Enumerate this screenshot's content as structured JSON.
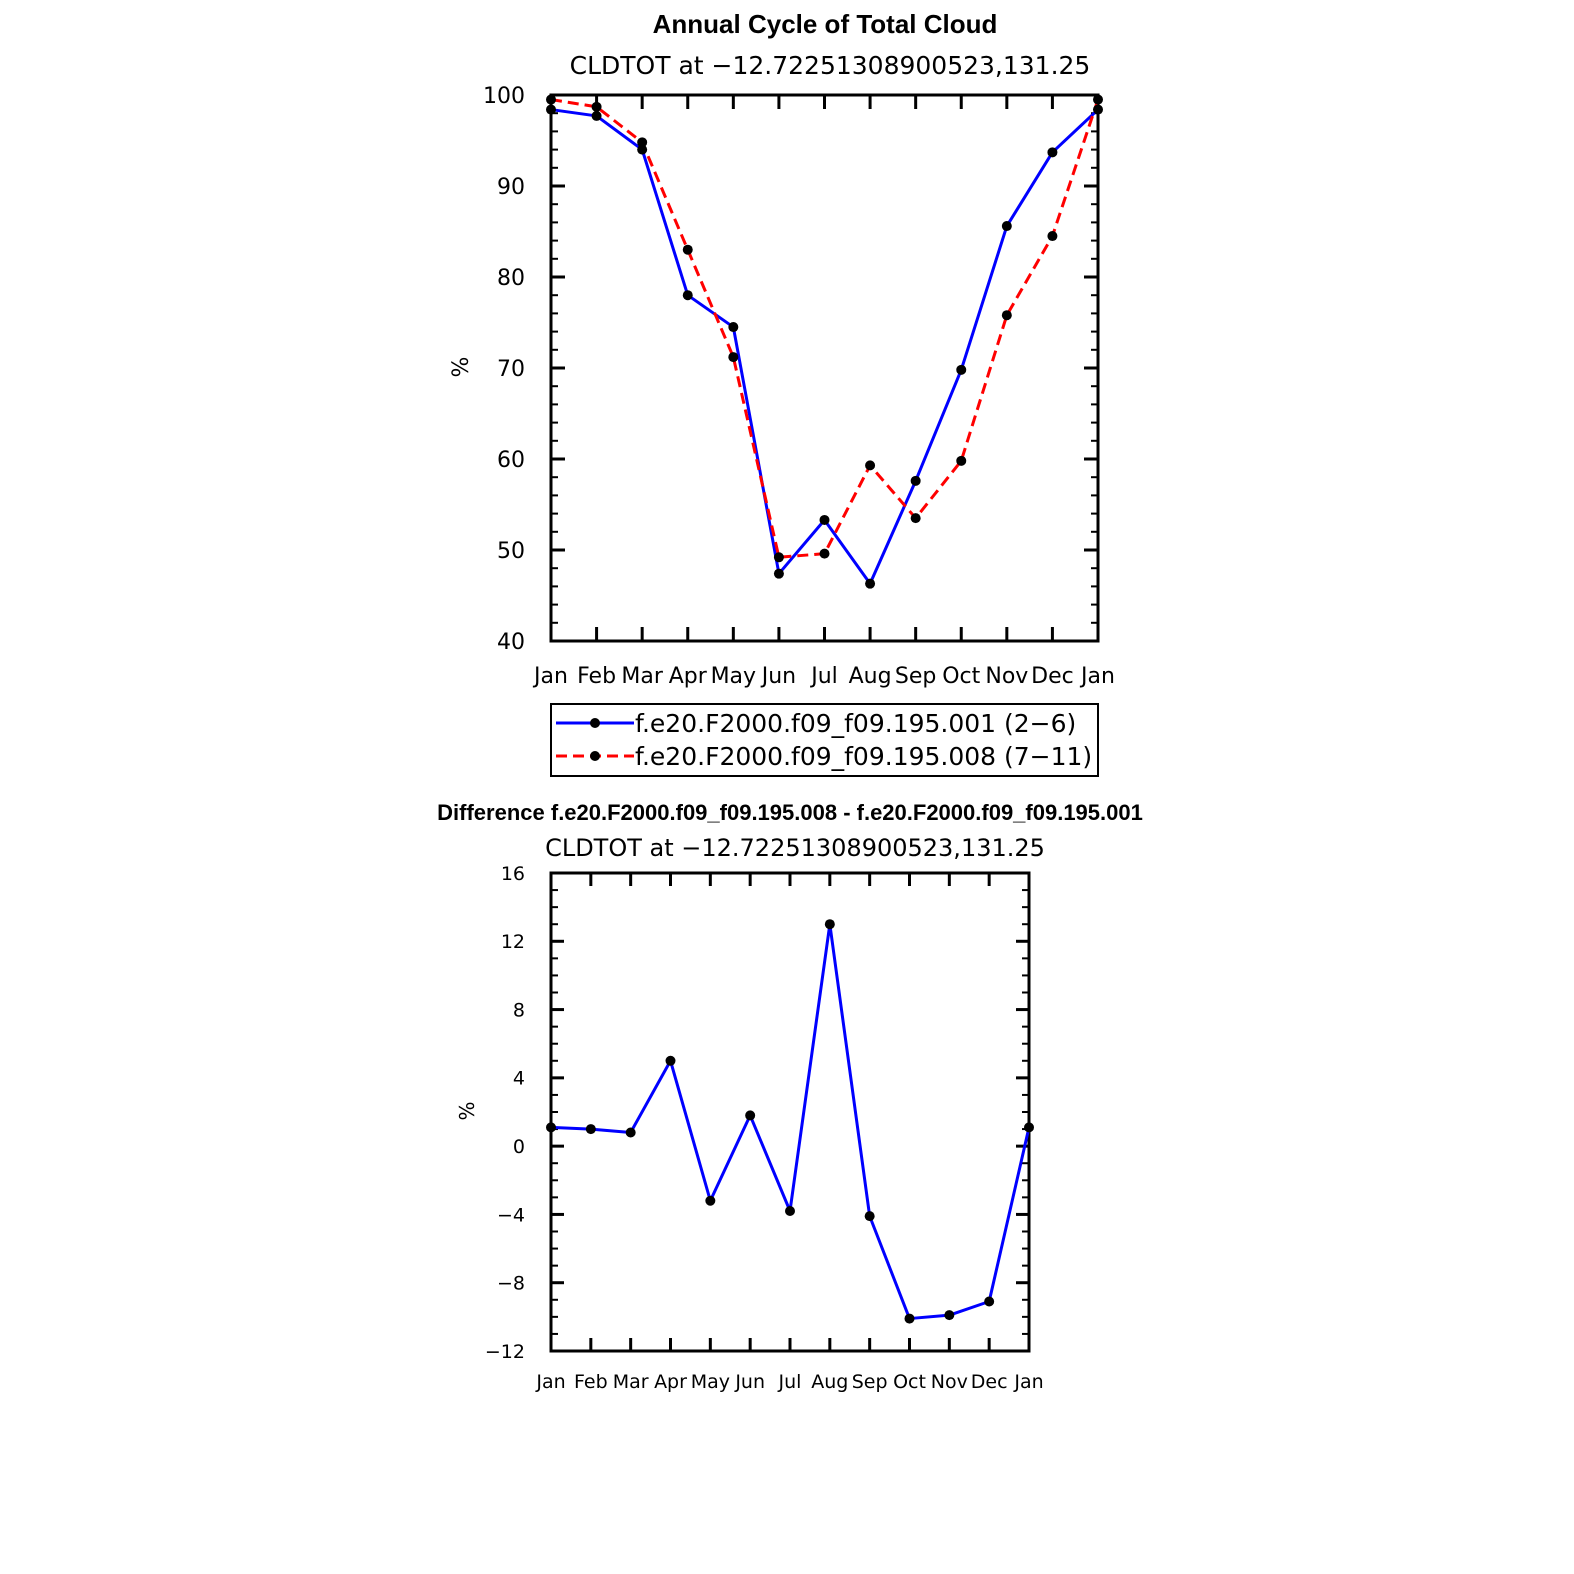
{
  "chart_data": [
    {
      "type": "line",
      "title": "Annual Cycle of Total Cloud",
      "subtitle": "CLDTOT at −12.72251308900523,131.25",
      "ylabel": "%",
      "xlabel": "",
      "categories": [
        "Jan",
        "Feb",
        "Mar",
        "Apr",
        "May",
        "Jun",
        "Jul",
        "Aug",
        "Sep",
        "Oct",
        "Nov",
        "Dec",
        "Jan"
      ],
      "ylim": [
        40,
        100
      ],
      "yticks": [
        "40",
        "50",
        "60",
        "70",
        "80",
        "90",
        "100"
      ],
      "series": [
        {
          "name": "f.e20.F2000.f09_f09.195.001 (2−6)",
          "color": "#0000ff",
          "dash": "solid",
          "values": [
            98.4,
            97.7,
            94.0,
            78.0,
            74.5,
            47.4,
            53.3,
            46.3,
            57.6,
            69.8,
            85.6,
            93.7,
            98.4
          ]
        },
        {
          "name": "f.e20.F2000.f09_f09.195.008 (7−11)",
          "color": "#ff0000",
          "dash": "dashed",
          "values": [
            99.5,
            98.7,
            94.8,
            83.0,
            71.2,
            49.2,
            49.6,
            59.3,
            53.5,
            59.8,
            75.8,
            84.5,
            99.5
          ]
        }
      ],
      "legend": "below-plot"
    },
    {
      "type": "line",
      "title": "Difference f.e20.F2000.f09_f09.195.008 - f.e20.F2000.f09_f09.195.001",
      "subtitle": "CLDTOT at −12.72251308900523,131.25",
      "ylabel": "%",
      "xlabel": "",
      "categories": [
        "Jan",
        "Feb",
        "Mar",
        "Apr",
        "May",
        "Jun",
        "Jul",
        "Aug",
        "Sep",
        "Oct",
        "Nov",
        "Dec",
        "Jan"
      ],
      "ylim": [
        -12,
        16
      ],
      "yticks": [
        "−12",
        "−8",
        "−4",
        "0",
        "4",
        "8",
        "12",
        "16"
      ],
      "series": [
        {
          "name": "difference",
          "color": "#0000ff",
          "dash": "solid",
          "values": [
            1.1,
            1.0,
            0.8,
            5.0,
            -3.2,
            1.8,
            -3.8,
            13.0,
            -4.1,
            -10.1,
            -9.9,
            -9.1,
            1.1
          ]
        }
      ]
    }
  ]
}
